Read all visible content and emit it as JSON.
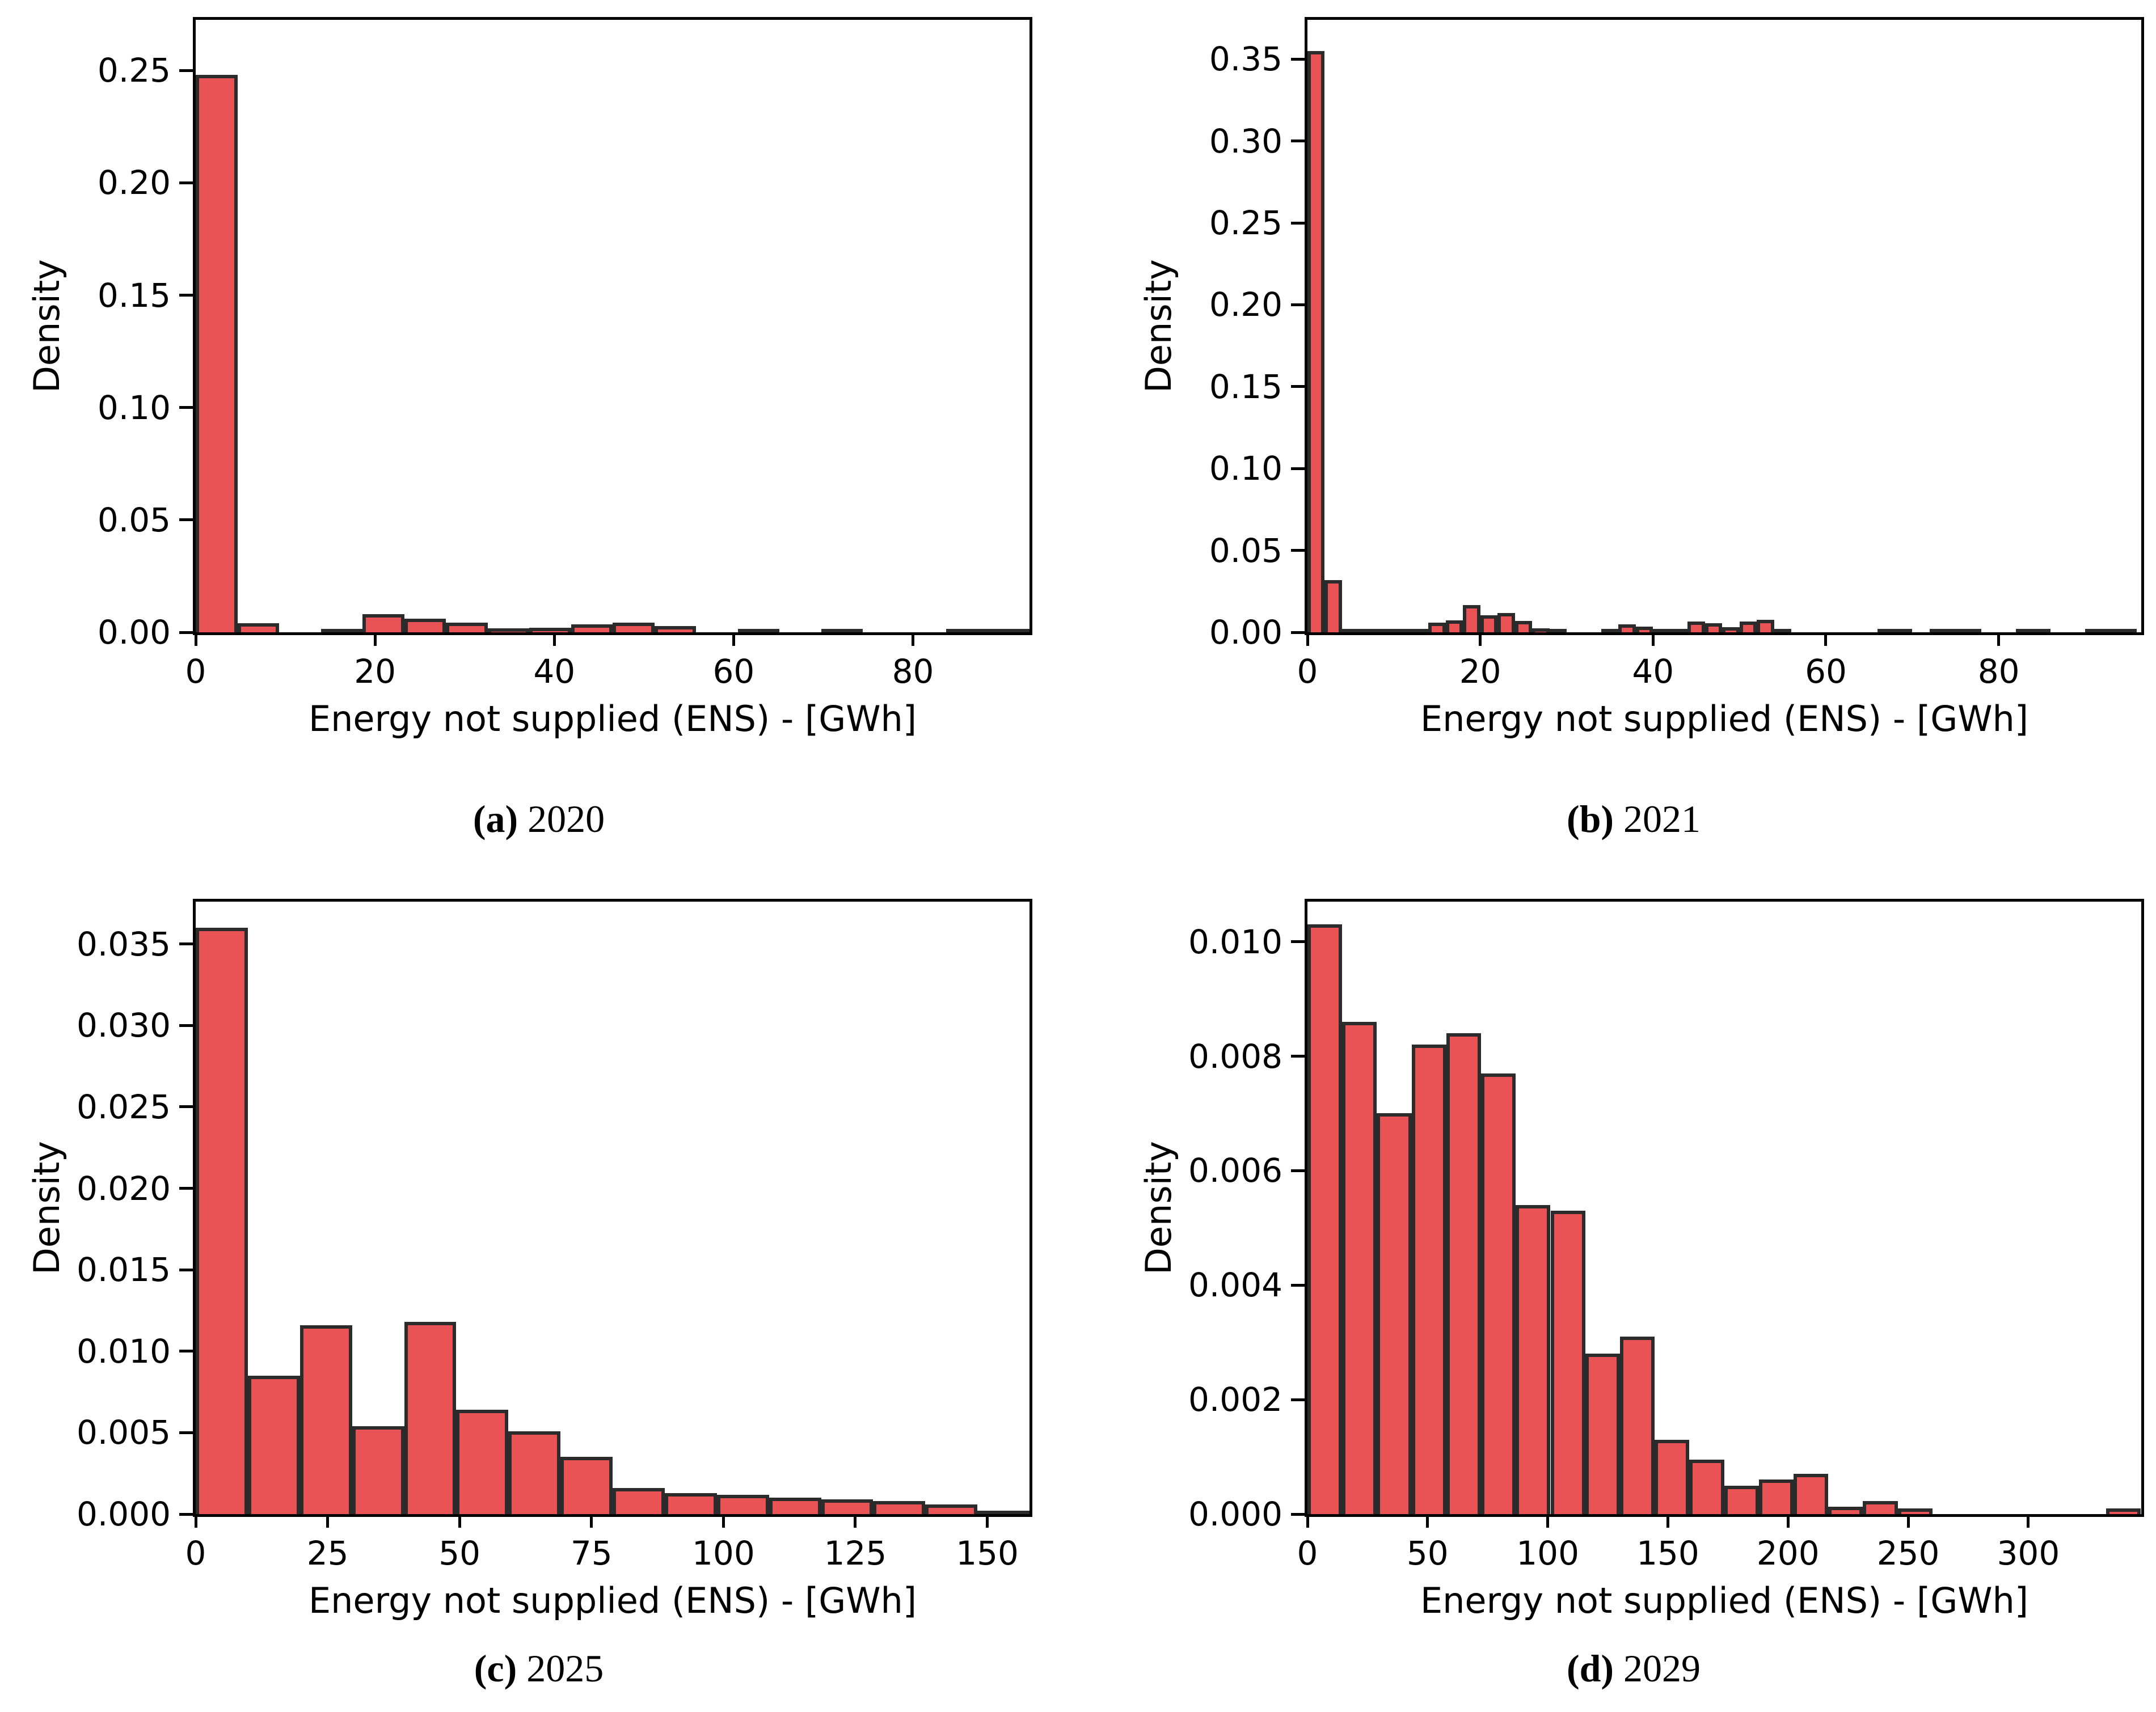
{
  "figure": {
    "background": "#ffffff",
    "bar_fill_color": "#ea5355",
    "bar_edge_color": "#2b2b2b",
    "axis_color": "#000000"
  },
  "chart_data": [
    {
      "id": "a",
      "type": "bar",
      "title": "(a) 2020",
      "caption": {
        "label": "(a)",
        "year": "2020"
      },
      "xlabel": "Energy not supplied (ENS) - [GWh]",
      "ylabel": "Density",
      "xlim": [
        0,
        93
      ],
      "ylim": [
        0,
        0.2725
      ],
      "xticks": [
        0,
        20,
        40,
        60,
        80
      ],
      "yticks": [
        0.0,
        0.05,
        0.1,
        0.15,
        0.2,
        0.25
      ],
      "ytick_decimals": 2,
      "grid": false,
      "legend": null,
      "bin_start": 0,
      "bin_width": 4.65,
      "values": [
        0.248,
        0.004,
        0,
        0.0013,
        0.008,
        0.006,
        0.0042,
        0.0018,
        0.002,
        0.0035,
        0.0042,
        0.0028,
        0,
        0.001,
        0,
        0.0012,
        0,
        0,
        0.0008,
        0.0008
      ]
    },
    {
      "id": "b",
      "type": "bar",
      "title": "(b) 2021",
      "caption": {
        "label": "(b)",
        "year": "2021"
      },
      "xlabel": "Energy not supplied (ENS) - [GWh]",
      "ylabel": "Density",
      "xlim": [
        0,
        96.5
      ],
      "ylim": [
        0,
        0.374
      ],
      "xticks": [
        0,
        20,
        40,
        60,
        80
      ],
      "yticks": [
        0.0,
        0.05,
        0.1,
        0.15,
        0.2,
        0.25,
        0.3,
        0.35
      ],
      "ytick_decimals": 2,
      "grid": false,
      "legend": null,
      "bin_start": 0,
      "bin_width": 2.0,
      "values": [
        0.355,
        0.032,
        0.0017,
        0.001,
        0.0012,
        0.0008,
        0.0014,
        0.0058,
        0.0073,
        0.0165,
        0.0105,
        0.0117,
        0.007,
        0.0023,
        0.0012,
        0,
        0,
        0.0009,
        0.0049,
        0.0035,
        0.0008,
        0.001,
        0.0065,
        0.0055,
        0.003,
        0.0065,
        0.0075,
        0.0015,
        0,
        0,
        0,
        0,
        0,
        0.0018,
        0.001,
        0,
        0.0022,
        0.001,
        0.0008,
        0,
        0,
        0.001,
        0.0007,
        0,
        0,
        0.0008,
        0.0008,
        0.0006
      ]
    },
    {
      "id": "c",
      "type": "bar",
      "title": "(c) 2025",
      "caption": {
        "label": "(c)",
        "year": "2025"
      },
      "xlabel": "Energy not supplied (ENS) - [GWh]",
      "ylabel": "Density",
      "xlim": [
        0,
        158
      ],
      "ylim": [
        0,
        0.0376
      ],
      "xticks": [
        0,
        25,
        50,
        75,
        100,
        125,
        150
      ],
      "yticks": [
        0.0,
        0.005,
        0.01,
        0.015,
        0.02,
        0.025,
        0.03,
        0.035
      ],
      "ytick_decimals": 3,
      "grid": false,
      "legend": null,
      "bin_start": 0,
      "bin_width": 9.875,
      "values": [
        0.036,
        0.0085,
        0.0116,
        0.0054,
        0.0118,
        0.0064,
        0.0051,
        0.0035,
        0.0016,
        0.0013,
        0.0012,
        0.001,
        0.0009,
        0.0008,
        0.0006,
        0.0002
      ]
    },
    {
      "id": "d",
      "type": "bar",
      "title": "(d) 2029",
      "caption": {
        "label": "(d)",
        "year": "2029"
      },
      "xlabel": "Energy not supplied (ENS) - [GWh]",
      "ylabel": "Density",
      "xlim": [
        0,
        347
      ],
      "ylim": [
        0,
        0.0107
      ],
      "xticks": [
        0,
        50,
        100,
        150,
        200,
        250,
        300
      ],
      "yticks": [
        0.0,
        0.002,
        0.004,
        0.006,
        0.008,
        0.01
      ],
      "ytick_decimals": 3,
      "grid": false,
      "legend": null,
      "bin_start": 0,
      "bin_width": 14.45,
      "values": [
        0.0103,
        0.0086,
        0.007,
        0.0082,
        0.0084,
        0.0077,
        0.0054,
        0.0053,
        0.0028,
        0.0031,
        0.0013,
        0.00095,
        0.0005,
        0.0006,
        0.0007,
        0.00013,
        0.00023,
        0.0001,
        0,
        0,
        0,
        0,
        0,
        0.0001
      ]
    }
  ]
}
